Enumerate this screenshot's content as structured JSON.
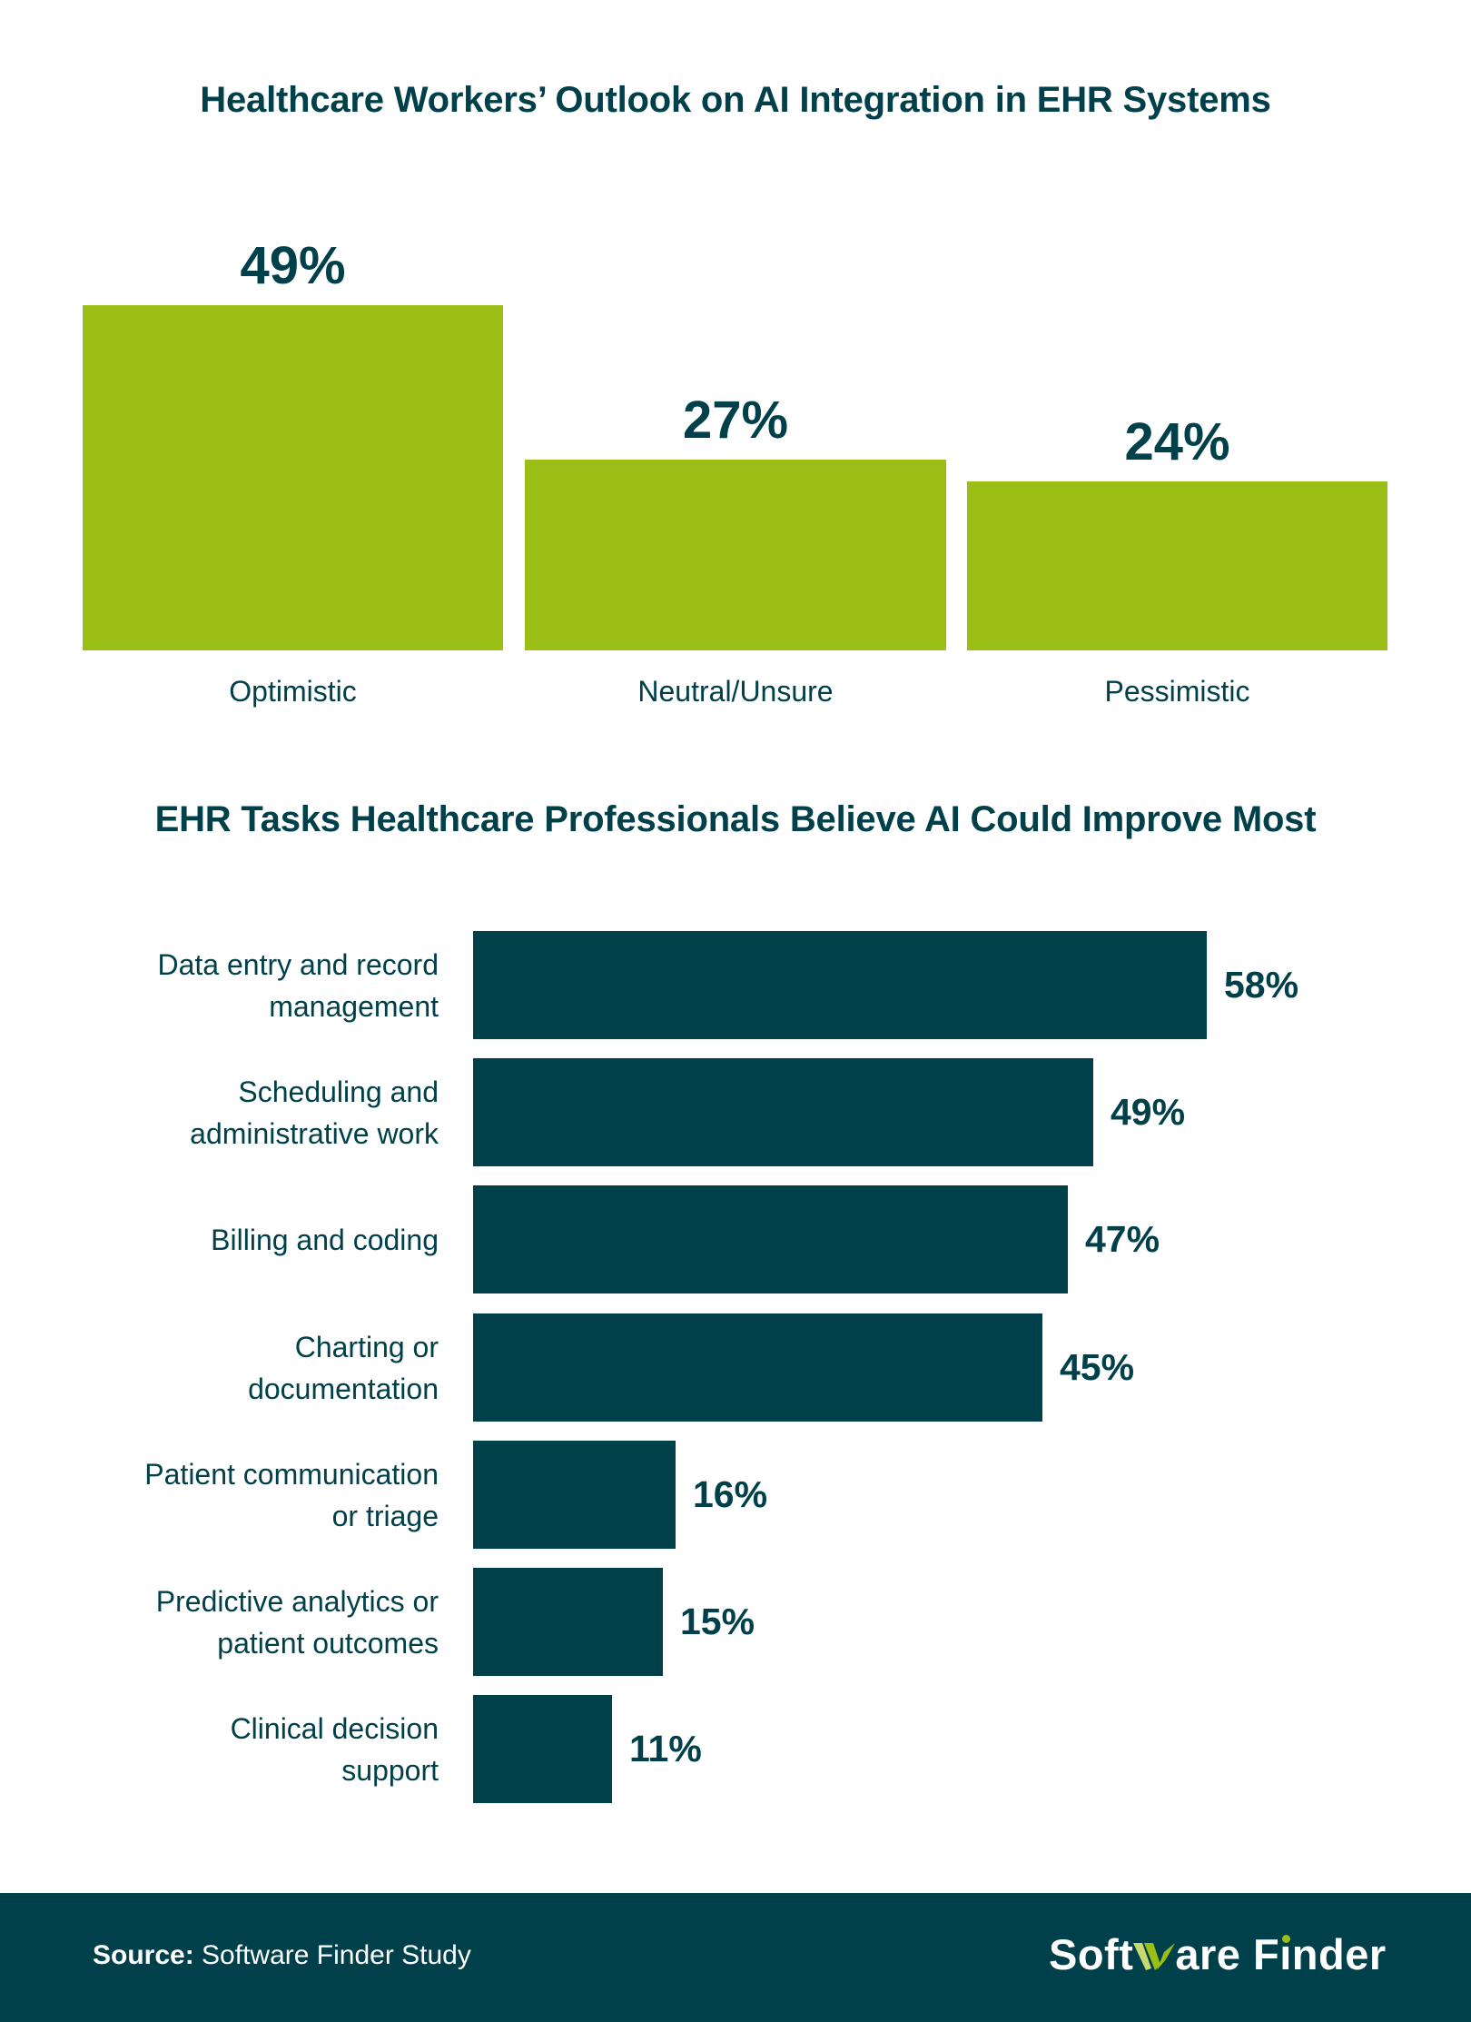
{
  "colors": {
    "primary": "#00404A",
    "accent": "#9BBE17",
    "background": "#FFFFFF",
    "footer_text": "#FFFFFF"
  },
  "chart_data": [
    {
      "type": "bar",
      "orientation": "vertical",
      "title": "Healthcare Workers’ Outlook on AI Integration in EHR Systems",
      "categories": [
        "Optimistic",
        "Neutral/Unsure",
        "Pessimistic"
      ],
      "values": [
        49,
        27,
        24
      ],
      "value_labels": [
        "49%",
        "27%",
        "24%"
      ],
      "unit": "%",
      "xlabel": "",
      "ylabel": "",
      "grid": false,
      "legend": null,
      "color": "#9BBE17"
    },
    {
      "type": "bar",
      "orientation": "horizontal",
      "title": "EHR Tasks Healthcare Professionals Believe AI Could Improve Most",
      "categories": [
        "Data entry and record management",
        "Scheduling and administrative work",
        "Billing and coding",
        "Charting or documentation",
        "Patient communication or triage",
        "Predictive analytics or patient outcomes",
        "Clinical decision support"
      ],
      "values": [
        58,
        49,
        47,
        45,
        16,
        15,
        11
      ],
      "value_labels": [
        "58%",
        "49%",
        "47%",
        "45%",
        "16%",
        "15%",
        "11%"
      ],
      "unit": "%",
      "xlabel": "",
      "ylabel": "",
      "grid": false,
      "legend": null,
      "color": "#00404A"
    }
  ],
  "outlook": {
    "title": "Healthcare Workers’ Outlook on AI Integration in EHR Systems",
    "bars": [
      {
        "label": "Optimistic",
        "value": 49,
        "value_label": "49%"
      },
      {
        "label": "Neutral/Unsure",
        "value": 27,
        "value_label": "27%"
      },
      {
        "label": "Pessimistic",
        "value": 24,
        "value_label": "24%"
      }
    ]
  },
  "tasks": {
    "title": "EHR Tasks Healthcare Professionals Believe AI Could Improve Most",
    "bars": [
      {
        "label_lines": [
          "Data entry and record",
          "management"
        ],
        "value": 58,
        "value_label": "58%"
      },
      {
        "label_lines": [
          "Scheduling and",
          "administrative work"
        ],
        "value": 49,
        "value_label": "49%"
      },
      {
        "label_lines": [
          "Billing and coding"
        ],
        "value": 47,
        "value_label": "47%"
      },
      {
        "label_lines": [
          "Charting or",
          "documentation"
        ],
        "value": 45,
        "value_label": "45%"
      },
      {
        "label_lines": [
          "Patient communication",
          "or triage"
        ],
        "value": 16,
        "value_label": "16%"
      },
      {
        "label_lines": [
          "Predictive analytics or",
          "patient outcomes"
        ],
        "value": 15,
        "value_label": "15%"
      },
      {
        "label_lines": [
          "Clinical decision",
          "support"
        ],
        "value": 11,
        "value_label": "11%"
      }
    ]
  },
  "footer": {
    "source_label": "Source:",
    "source_text": "Software Finder Study",
    "logo": {
      "part1": "Soft",
      "part2": "are F",
      "part3": "i",
      "part4": "nder",
      "full_text": "Software Finder"
    }
  }
}
